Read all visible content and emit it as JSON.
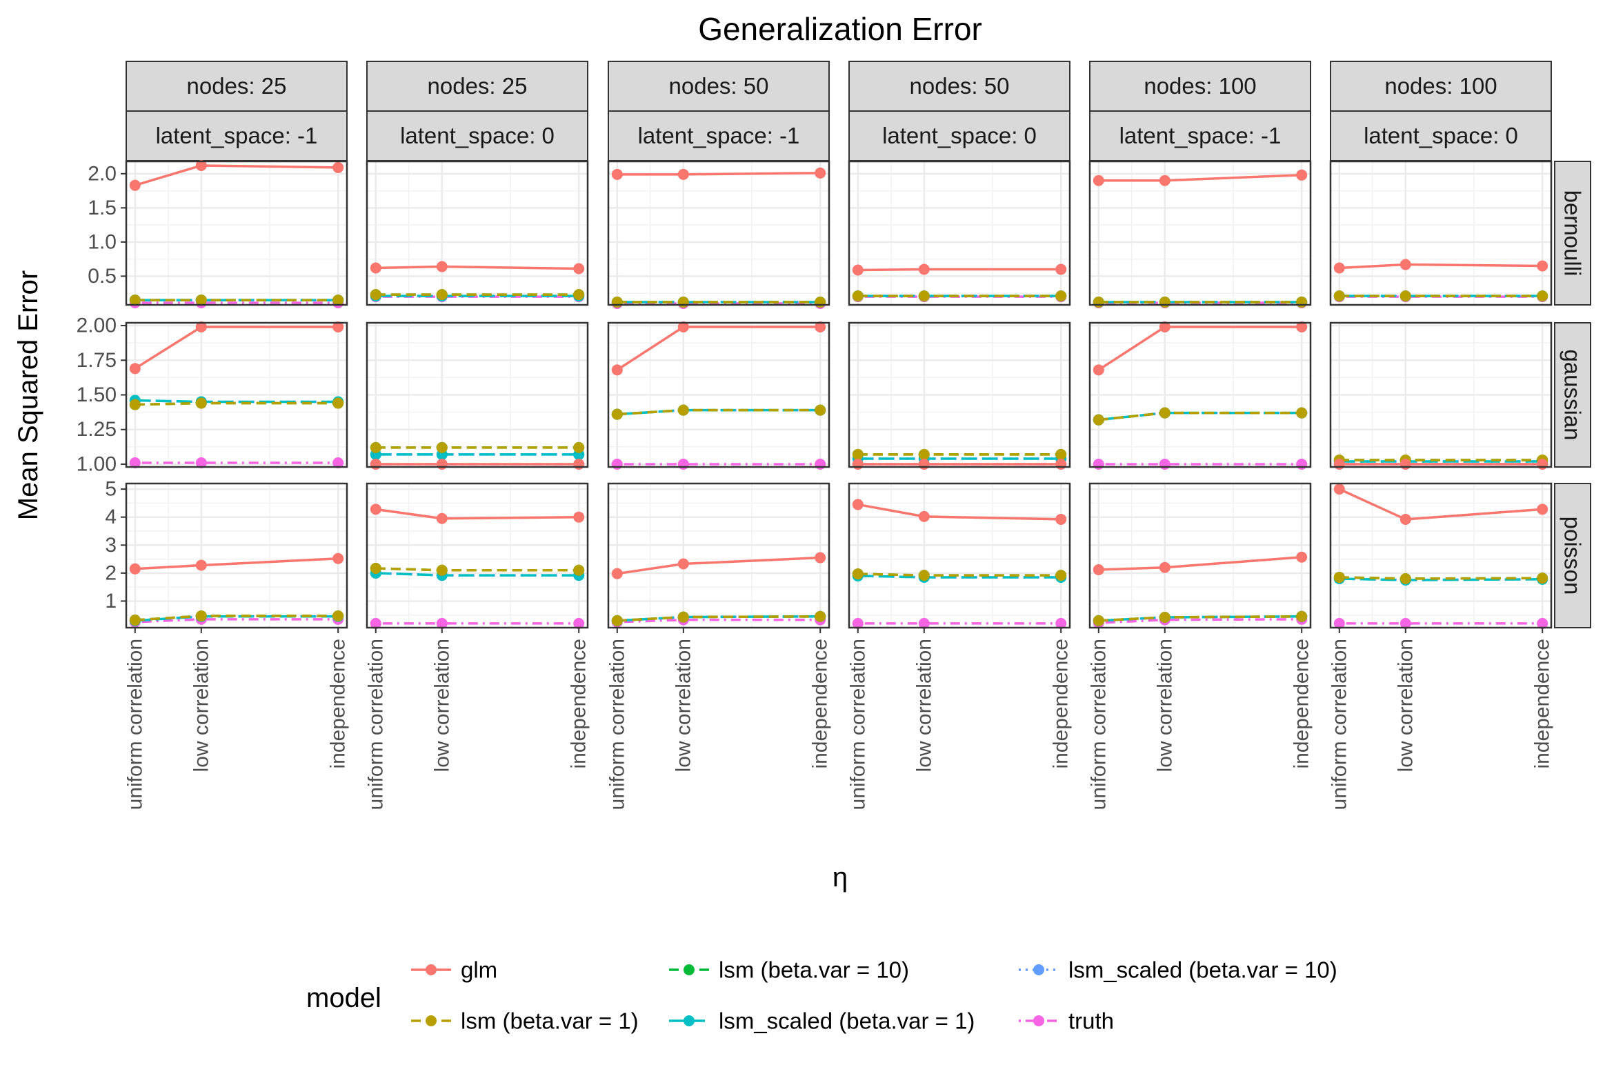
{
  "chart_data": {
    "type": "line",
    "title": "Generalization Error",
    "xlabel": "η",
    "ylabel": "Mean Squared Error",
    "legend": {
      "title": "model",
      "placement": "bottom",
      "entries": [
        {
          "name": "glm",
          "color": "#F8766D",
          "linetype": "solid"
        },
        {
          "name": "lsm (beta.var = 1)",
          "color": "#B79F00",
          "linetype": "dashed"
        },
        {
          "name": "lsm (beta.var = 10)",
          "color": "#00BA38",
          "linetype": "dashed"
        },
        {
          "name": "lsm_scaled (beta.var = 1)",
          "color": "#00BFC4",
          "linetype": "longdash"
        },
        {
          "name": "lsm_scaled (beta.var = 10)",
          "color": "#619CFF",
          "linetype": "dotted"
        },
        {
          "name": "truth",
          "color": "#F564E3",
          "linetype": "dotdash"
        }
      ]
    },
    "categories": [
      "uniform correlation",
      "low correlation",
      "independence"
    ],
    "columns": [
      {
        "nodes_label": "nodes: 25",
        "latent_label": "latent_space: -1"
      },
      {
        "nodes_label": "nodes: 25",
        "latent_label": "latent_space: 0"
      },
      {
        "nodes_label": "nodes: 50",
        "latent_label": "latent_space: -1"
      },
      {
        "nodes_label": "nodes: 50",
        "latent_label": "latent_space: 0"
      },
      {
        "nodes_label": "nodes: 100",
        "latent_label": "latent_space: -1"
      },
      {
        "nodes_label": "nodes: 100",
        "latent_label": "latent_space: 0"
      }
    ],
    "rows": [
      {
        "label": "bernoulli",
        "ylim": [
          0.08,
          2.18
        ],
        "yticks": [
          "0.5",
          "1.0",
          "1.5",
          "2.0"
        ],
        "ytick_values": [
          0.5,
          1.0,
          1.5,
          2.0
        ]
      },
      {
        "label": "gaussian",
        "ylim": [
          0.98,
          2.02
        ],
        "yticks": [
          "1.00",
          "1.25",
          "1.50",
          "1.75",
          "2.00"
        ],
        "ytick_values": [
          1.0,
          1.25,
          1.5,
          1.75,
          2.0
        ]
      },
      {
        "label": "poisson",
        "ylim": [
          0.05,
          5.2
        ],
        "yticks": [
          "1",
          "2",
          "3",
          "4",
          "5"
        ],
        "ytick_values": [
          1,
          2,
          3,
          4,
          5
        ]
      }
    ],
    "panels": [
      [
        {
          "glm": [
            1.83,
            2.12,
            2.09
          ],
          "lsm1": [
            0.15,
            0.15,
            0.15
          ],
          "lsm10": [
            0.15,
            0.15,
            0.15
          ],
          "lsc1": [
            0.15,
            0.15,
            0.15
          ],
          "lsc10": [
            0.15,
            0.15,
            0.15
          ],
          "truth": [
            0.11,
            0.11,
            0.11
          ]
        },
        {
          "glm": [
            0.62,
            0.64,
            0.61
          ],
          "lsm1": [
            0.23,
            0.23,
            0.23
          ],
          "lsm10": [
            0.23,
            0.23,
            0.23
          ],
          "lsc1": [
            0.21,
            0.21,
            0.21
          ],
          "lsc10": [
            0.21,
            0.21,
            0.21
          ],
          "truth": [
            0.2,
            0.2,
            0.2
          ]
        },
        {
          "glm": [
            1.99,
            1.99,
            2.01
          ],
          "lsm1": [
            0.12,
            0.12,
            0.12
          ],
          "lsm10": [
            0.12,
            0.12,
            0.12
          ],
          "lsc1": [
            0.12,
            0.12,
            0.12
          ],
          "lsc10": [
            0.12,
            0.12,
            0.12
          ],
          "truth": [
            0.1,
            0.1,
            0.1
          ]
        },
        {
          "glm": [
            0.59,
            0.6,
            0.6
          ],
          "lsm1": [
            0.21,
            0.21,
            0.21
          ],
          "lsm10": [
            0.21,
            0.21,
            0.21
          ],
          "lsc1": [
            0.21,
            0.21,
            0.21
          ],
          "lsc10": [
            0.21,
            0.21,
            0.21
          ],
          "truth": [
            0.2,
            0.2,
            0.2
          ]
        },
        {
          "glm": [
            1.9,
            1.9,
            1.98
          ],
          "lsm1": [
            0.12,
            0.12,
            0.12
          ],
          "lsm10": [
            0.12,
            0.12,
            0.12
          ],
          "lsc1": [
            0.12,
            0.12,
            0.12
          ],
          "lsc10": [
            0.12,
            0.12,
            0.12
          ],
          "truth": [
            0.11,
            0.11,
            0.11
          ]
        },
        {
          "glm": [
            0.62,
            0.67,
            0.65
          ],
          "lsm1": [
            0.21,
            0.21,
            0.21
          ],
          "lsm10": [
            0.21,
            0.21,
            0.21
          ],
          "lsc1": [
            0.21,
            0.21,
            0.21
          ],
          "lsc10": [
            0.21,
            0.21,
            0.21
          ],
          "truth": [
            0.2,
            0.2,
            0.2
          ]
        }
      ],
      [
        {
          "glm": [
            1.69,
            1.99,
            1.99
          ],
          "lsm1": [
            1.43,
            1.44,
            1.44
          ],
          "lsm10": [
            1.43,
            1.44,
            1.44
          ],
          "lsc1": [
            1.46,
            1.45,
            1.45
          ],
          "lsc10": [
            1.46,
            1.45,
            1.45
          ],
          "truth": [
            1.01,
            1.01,
            1.01
          ]
        },
        {
          "glm": [
            1.0,
            1.0,
            1.0
          ],
          "lsm1": [
            1.12,
            1.12,
            1.12
          ],
          "lsm10": [
            1.12,
            1.12,
            1.12
          ],
          "lsc1": [
            1.07,
            1.07,
            1.07
          ],
          "lsc10": [
            1.07,
            1.07,
            1.07
          ],
          "truth": [
            1.0,
            1.0,
            1.0
          ]
        },
        {
          "glm": [
            1.68,
            1.99,
            1.99
          ],
          "lsm1": [
            1.36,
            1.39,
            1.39
          ],
          "lsm10": [
            1.36,
            1.39,
            1.39
          ],
          "lsc1": [
            1.36,
            1.39,
            1.39
          ],
          "lsc10": [
            1.36,
            1.39,
            1.39
          ],
          "truth": [
            1.0,
            1.0,
            1.0
          ]
        },
        {
          "glm": [
            1.0,
            1.0,
            1.0
          ],
          "lsm1": [
            1.07,
            1.07,
            1.07
          ],
          "lsm10": [
            1.07,
            1.07,
            1.07
          ],
          "lsc1": [
            1.04,
            1.04,
            1.04
          ],
          "lsc10": [
            1.04,
            1.04,
            1.04
          ],
          "truth": [
            1.0,
            1.0,
            1.0
          ]
        },
        {
          "glm": [
            1.68,
            1.99,
            1.99
          ],
          "lsm1": [
            1.32,
            1.37,
            1.37
          ],
          "lsm10": [
            1.32,
            1.37,
            1.37
          ],
          "lsc1": [
            1.32,
            1.37,
            1.37
          ],
          "lsc10": [
            1.32,
            1.37,
            1.37
          ],
          "truth": [
            1.0,
            1.0,
            1.0
          ]
        },
        {
          "glm": [
            1.0,
            1.0,
            1.0
          ],
          "lsm1": [
            1.03,
            1.03,
            1.03
          ],
          "lsm10": [
            1.03,
            1.03,
            1.03
          ],
          "lsc1": [
            1.02,
            1.02,
            1.02
          ],
          "lsc10": [
            1.02,
            1.02,
            1.02
          ],
          "truth": [
            1.0,
            1.0,
            1.0
          ]
        }
      ],
      [
        {
          "glm": [
            2.15,
            2.28,
            2.52
          ],
          "lsm1": [
            0.32,
            0.47,
            0.47
          ],
          "lsm10": [
            0.32,
            0.47,
            0.47
          ],
          "lsc1": [
            0.3,
            0.45,
            0.45
          ],
          "lsc10": [
            0.3,
            0.45,
            0.45
          ],
          "truth": [
            0.25,
            0.35,
            0.35
          ]
        },
        {
          "glm": [
            4.28,
            3.95,
            4.0
          ],
          "lsm1": [
            2.17,
            2.1,
            2.1
          ],
          "lsm10": [
            2.17,
            2.1,
            2.1
          ],
          "lsc1": [
            2.0,
            1.92,
            1.92
          ],
          "lsc10": [
            2.0,
            1.92,
            1.92
          ],
          "truth": [
            0.2,
            0.2,
            0.2
          ]
        },
        {
          "glm": [
            1.98,
            2.33,
            2.55
          ],
          "lsm1": [
            0.3,
            0.43,
            0.45
          ],
          "lsm10": [
            0.3,
            0.43,
            0.45
          ],
          "lsc1": [
            0.3,
            0.43,
            0.45
          ],
          "lsc10": [
            0.3,
            0.43,
            0.45
          ],
          "truth": [
            0.25,
            0.33,
            0.33
          ]
        },
        {
          "glm": [
            4.45,
            4.02,
            3.92
          ],
          "lsm1": [
            1.97,
            1.92,
            1.92
          ],
          "lsm10": [
            1.97,
            1.92,
            1.92
          ],
          "lsc1": [
            1.9,
            1.85,
            1.85
          ],
          "lsc10": [
            1.9,
            1.85,
            1.85
          ],
          "truth": [
            0.2,
            0.2,
            0.2
          ]
        },
        {
          "glm": [
            2.12,
            2.2,
            2.57
          ],
          "lsm1": [
            0.3,
            0.42,
            0.45
          ],
          "lsm10": [
            0.3,
            0.42,
            0.45
          ],
          "lsc1": [
            0.3,
            0.42,
            0.45
          ],
          "lsc10": [
            0.3,
            0.42,
            0.45
          ],
          "truth": [
            0.22,
            0.33,
            0.35
          ]
        },
        {
          "glm": [
            5.0,
            3.92,
            4.28
          ],
          "lsm1": [
            1.85,
            1.8,
            1.82
          ],
          "lsm10": [
            1.85,
            1.8,
            1.82
          ],
          "lsc1": [
            1.8,
            1.75,
            1.78
          ],
          "lsc10": [
            1.8,
            1.75,
            1.78
          ],
          "truth": [
            0.2,
            0.2,
            0.2
          ]
        }
      ]
    ]
  }
}
